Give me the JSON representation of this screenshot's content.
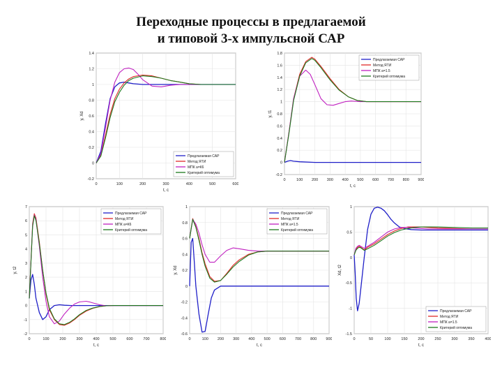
{
  "title_line1": "Переходные процессы в предлагаемой",
  "title_line2": "и типовой 3-х импульсной САР",
  "colors": {
    "blue": "#1f1fc8",
    "red": "#e02828",
    "magenta": "#c020c0",
    "green": "#1d7a1d"
  },
  "chart_data": [
    {
      "type": "line",
      "ylabel": "y, Xd",
      "xlabel": "t, c",
      "xlim": [
        0,
        600
      ],
      "ylim": [
        -0.2,
        1.4
      ],
      "xticks": [
        0,
        100,
        200,
        300,
        400,
        500,
        600
      ],
      "yticks": [
        -0.2,
        0,
        0.2,
        0.4,
        0.6,
        0.8,
        1,
        1.2,
        1.4
      ],
      "legend_pos": "bottom-right",
      "series": [
        {
          "name": "Предлагаемая САР",
          "color": "blue",
          "x": [
            0,
            20,
            40,
            60,
            80,
            100,
            120,
            140,
            160,
            200,
            250,
            300,
            400,
            500,
            600
          ],
          "y": [
            0,
            0.15,
            0.5,
            0.82,
            0.97,
            1.02,
            1.03,
            1.02,
            1.01,
            1.0,
            1.0,
            1.0,
            1.0,
            1.0,
            1.0
          ]
        },
        {
          "name": "Метод ЯТИ",
          "color": "red",
          "x": [
            0,
            20,
            40,
            60,
            80,
            100,
            120,
            140,
            160,
            200,
            240,
            280,
            320,
            360,
            400,
            450,
            500,
            600
          ],
          "y": [
            0,
            0.1,
            0.35,
            0.62,
            0.82,
            0.94,
            1.02,
            1.07,
            1.1,
            1.12,
            1.11,
            1.08,
            1.05,
            1.03,
            1.01,
            1.0,
            1.0,
            1.0
          ]
        },
        {
          "name": "МПК а=К6",
          "color": "magenta",
          "x": [
            0,
            20,
            40,
            60,
            80,
            100,
            120,
            140,
            160,
            180,
            200,
            240,
            280,
            320,
            360,
            400,
            500,
            600
          ],
          "y": [
            0,
            0.12,
            0.45,
            0.8,
            1.03,
            1.15,
            1.2,
            1.21,
            1.19,
            1.13,
            1.06,
            0.98,
            0.97,
            0.99,
            1.0,
            1.0,
            1.0,
            1.0
          ]
        },
        {
          "name": "Критерий оптимума",
          "color": "green",
          "x": [
            0,
            20,
            40,
            60,
            80,
            100,
            120,
            140,
            160,
            200,
            240,
            280,
            320,
            360,
            400,
            450,
            500,
            600
          ],
          "y": [
            0,
            0.09,
            0.32,
            0.58,
            0.78,
            0.9,
            0.99,
            1.05,
            1.08,
            1.11,
            1.1,
            1.08,
            1.05,
            1.03,
            1.01,
            1.0,
            1.0,
            1.0
          ]
        }
      ]
    },
    {
      "type": "line",
      "ylabel": "y, t1",
      "xlabel": "t, c",
      "xlim": [
        0,
        900
      ],
      "ylim": [
        -0.2,
        1.8
      ],
      "xticks": [
        0,
        100,
        200,
        300,
        400,
        500,
        600,
        700,
        800,
        900
      ],
      "yticks": [
        -0.2,
        0,
        0.2,
        0.4,
        0.6,
        0.8,
        1,
        1.2,
        1.4,
        1.6,
        1.8
      ],
      "legend_pos": "top-right",
      "series": [
        {
          "name": "Предлагаемая САР",
          "color": "blue",
          "x": [
            0,
            20,
            40,
            60,
            100,
            200,
            900
          ],
          "y": [
            0,
            0.02,
            0.03,
            0.02,
            0.01,
            0.0,
            0.0
          ]
        },
        {
          "name": "Метод ЯТИ",
          "color": "red",
          "x": [
            0,
            30,
            60,
            100,
            140,
            180,
            200,
            240,
            300,
            360,
            420,
            480,
            540,
            600,
            700,
            800,
            900
          ],
          "y": [
            0,
            0.5,
            1.05,
            1.45,
            1.66,
            1.73,
            1.7,
            1.58,
            1.38,
            1.2,
            1.08,
            1.02,
            1.0,
            1.0,
            1.0,
            1.0,
            1.0
          ]
        },
        {
          "name": "МПК а=1.5",
          "color": "magenta",
          "x": [
            0,
            30,
            60,
            100,
            140,
            170,
            200,
            240,
            280,
            320,
            360,
            400,
            440,
            500,
            600,
            700,
            900
          ],
          "y": [
            0,
            0.5,
            1.05,
            1.42,
            1.52,
            1.45,
            1.28,
            1.05,
            0.95,
            0.94,
            0.97,
            1.0,
            1.01,
            1.0,
            1.0,
            1.0,
            1.0
          ]
        },
        {
          "name": "Критерий оптимума",
          "color": "green",
          "x": [
            0,
            30,
            60,
            100,
            140,
            180,
            200,
            240,
            300,
            360,
            420,
            480,
            540,
            600,
            700,
            800,
            900
          ],
          "y": [
            0,
            0.48,
            1.02,
            1.42,
            1.64,
            1.71,
            1.68,
            1.56,
            1.36,
            1.19,
            1.08,
            1.02,
            1.0,
            1.0,
            1.0,
            1.0,
            1.0
          ]
        }
      ]
    },
    {
      "type": "line",
      "ylabel": "y, t2",
      "xlabel": "t, c",
      "xlim": [
        0,
        800
      ],
      "ylim": [
        -2,
        7
      ],
      "xticks": [
        0,
        100,
        200,
        300,
        400,
        500,
        600,
        700,
        800
      ],
      "yticks": [
        -2,
        -1,
        0,
        1,
        2,
        3,
        4,
        5,
        6,
        7
      ],
      "legend_pos": "top-right",
      "series": [
        {
          "name": "Предлагаемая САР",
          "color": "blue",
          "x": [
            0,
            10,
            20,
            30,
            40,
            60,
            80,
            100,
            120,
            150,
            180,
            210,
            250,
            300,
            400,
            500,
            600,
            800
          ],
          "y": [
            0.5,
            1.8,
            2.2,
            1.5,
            0.5,
            -0.5,
            -1.0,
            -0.8,
            -0.3,
            0.0,
            0.05,
            0.02,
            0,
            0,
            0,
            0,
            0,
            0
          ]
        },
        {
          "name": "Метод ЯТИ",
          "color": "red",
          "x": [
            0,
            20,
            30,
            40,
            60,
            80,
            100,
            120,
            150,
            180,
            210,
            240,
            270,
            300,
            340,
            380,
            420,
            460,
            500,
            560,
            620,
            700,
            800
          ],
          "y": [
            0.5,
            5.8,
            6.5,
            6.2,
            4.5,
            2.5,
            0.8,
            -0.3,
            -1.0,
            -1.35,
            -1.4,
            -1.25,
            -1.0,
            -0.7,
            -0.4,
            -0.2,
            -0.08,
            -0.02,
            0,
            0,
            0,
            0,
            0
          ]
        },
        {
          "name": "МПК а=К6",
          "color": "magenta",
          "x": [
            0,
            20,
            30,
            40,
            60,
            80,
            100,
            120,
            150,
            180,
            210,
            240,
            270,
            300,
            340,
            360,
            380,
            420,
            460,
            500,
            560,
            620,
            800
          ],
          "y": [
            0.5,
            5.7,
            6.4,
            6.1,
            4.2,
            2.0,
            0.3,
            -0.8,
            -1.3,
            -1.1,
            -0.6,
            -0.2,
            0.1,
            0.25,
            0.3,
            0.25,
            0.18,
            0.05,
            -0.02,
            0,
            0,
            0,
            0
          ]
        },
        {
          "name": "Критерий оптимума",
          "color": "green",
          "x": [
            0,
            20,
            30,
            40,
            60,
            80,
            100,
            120,
            150,
            180,
            210,
            240,
            270,
            300,
            340,
            380,
            420,
            460,
            500,
            560,
            620,
            700,
            800
          ],
          "y": [
            0.5,
            5.6,
            6.35,
            6.0,
            4.4,
            2.5,
            0.9,
            -0.2,
            -0.95,
            -1.3,
            -1.35,
            -1.2,
            -0.95,
            -0.65,
            -0.35,
            -0.18,
            -0.07,
            -0.02,
            0,
            0,
            0,
            0,
            0
          ]
        }
      ]
    },
    {
      "type": "line",
      "ylabel": "y, Xd",
      "xlabel": "t, c",
      "xlim": [
        0,
        900
      ],
      "ylim": [
        -0.6,
        1.0
      ],
      "xticks": [
        0,
        100,
        200,
        300,
        400,
        500,
        600,
        700,
        800,
        900
      ],
      "yticks": [
        -0.6,
        -0.4,
        -0.2,
        0,
        0.2,
        0.4,
        0.6,
        0.8,
        1
      ],
      "legend_pos": "top-right",
      "series": [
        {
          "name": "Предлагаемая САР",
          "color": "blue",
          "x": [
            0,
            10,
            20,
            30,
            40,
            60,
            80,
            100,
            120,
            140,
            160,
            200,
            250,
            300,
            400,
            900
          ],
          "y": [
            0.0,
            0.55,
            0.6,
            0.3,
            0.0,
            -0.35,
            -0.58,
            -0.57,
            -0.35,
            -0.15,
            -0.05,
            0.0,
            0.0,
            0.0,
            0.0,
            0.0
          ]
        },
        {
          "name": "Метод ЯТИ",
          "color": "red",
          "x": [
            0,
            20,
            40,
            60,
            80,
            100,
            130,
            160,
            200,
            240,
            280,
            320,
            380,
            440,
            500,
            600,
            700,
            900
          ],
          "y": [
            0.6,
            0.85,
            0.75,
            0.6,
            0.42,
            0.28,
            0.12,
            0.06,
            0.07,
            0.16,
            0.26,
            0.33,
            0.4,
            0.43,
            0.44,
            0.44,
            0.44,
            0.44
          ]
        },
        {
          "name": "МПК а=1.5",
          "color": "magenta",
          "x": [
            0,
            20,
            40,
            60,
            80,
            100,
            130,
            160,
            200,
            240,
            280,
            320,
            380,
            440,
            500,
            600,
            700,
            900
          ],
          "y": [
            0.6,
            0.84,
            0.78,
            0.67,
            0.52,
            0.4,
            0.3,
            0.3,
            0.38,
            0.45,
            0.48,
            0.47,
            0.45,
            0.44,
            0.44,
            0.44,
            0.44,
            0.44
          ]
        },
        {
          "name": "Критерий оптимума",
          "color": "green",
          "x": [
            0,
            20,
            40,
            60,
            80,
            100,
            130,
            160,
            200,
            240,
            280,
            320,
            380,
            440,
            500,
            600,
            700,
            900
          ],
          "y": [
            0.6,
            0.84,
            0.74,
            0.58,
            0.4,
            0.25,
            0.1,
            0.05,
            0.07,
            0.15,
            0.24,
            0.31,
            0.39,
            0.43,
            0.44,
            0.44,
            0.44,
            0.44
          ]
        }
      ]
    },
    {
      "type": "line",
      "ylabel": "Xd, t2",
      "xlabel": "t, c",
      "xlim": [
        0,
        400
      ],
      "ylim": [
        -1.5,
        1.0
      ],
      "xticks": [
        0,
        50,
        100,
        150,
        200,
        250,
        300,
        350,
        400
      ],
      "yticks": [
        -1.5,
        -1,
        -0.5,
        0,
        0.5,
        1
      ],
      "legend_pos": "bottom-right",
      "series": [
        {
          "name": "Предлагаемая САР",
          "color": "blue",
          "x": [
            0,
            3,
            6,
            10,
            15,
            20,
            30,
            40,
            50,
            60,
            70,
            80,
            90,
            100,
            110,
            120,
            135,
            150,
            170,
            200,
            250,
            300,
            350,
            400
          ],
          "y": [
            0.05,
            -0.3,
            -0.8,
            -1.05,
            -0.9,
            -0.6,
            0.0,
            0.55,
            0.85,
            0.97,
            0.99,
            0.97,
            0.92,
            0.84,
            0.75,
            0.68,
            0.6,
            0.57,
            0.55,
            0.54,
            0.54,
            0.54,
            0.54,
            0.54
          ]
        },
        {
          "name": "Метод ЯТИ",
          "color": "red",
          "x": [
            0,
            5,
            10,
            15,
            20,
            30,
            40,
            60,
            80,
            100,
            120,
            140,
            160,
            180,
            200,
            220,
            250,
            300,
            350,
            400
          ],
          "y": [
            0.05,
            0.15,
            0.2,
            0.22,
            0.2,
            0.15,
            0.2,
            0.27,
            0.36,
            0.45,
            0.52,
            0.57,
            0.6,
            0.6,
            0.6,
            0.59,
            0.58,
            0.57,
            0.56,
            0.56
          ]
        },
        {
          "name": "МПК а=1.5",
          "color": "magenta",
          "x": [
            0,
            5,
            10,
            15,
            20,
            30,
            40,
            60,
            80,
            100,
            120,
            140,
            160,
            180,
            200,
            220,
            250,
            300,
            350,
            400
          ],
          "y": [
            0.05,
            0.18,
            0.22,
            0.24,
            0.22,
            0.18,
            0.22,
            0.3,
            0.4,
            0.5,
            0.56,
            0.59,
            0.59,
            0.58,
            0.57,
            0.56,
            0.56,
            0.56,
            0.56,
            0.56
          ]
        },
        {
          "name": "Критерий оптимума",
          "color": "green",
          "x": [
            0,
            5,
            10,
            15,
            20,
            30,
            40,
            60,
            80,
            100,
            120,
            140,
            160,
            180,
            200,
            220,
            250,
            300,
            350,
            400
          ],
          "y": [
            0.05,
            0.14,
            0.18,
            0.2,
            0.19,
            0.14,
            0.17,
            0.24,
            0.33,
            0.42,
            0.49,
            0.54,
            0.57,
            0.59,
            0.6,
            0.6,
            0.6,
            0.59,
            0.58,
            0.58
          ]
        }
      ]
    }
  ]
}
